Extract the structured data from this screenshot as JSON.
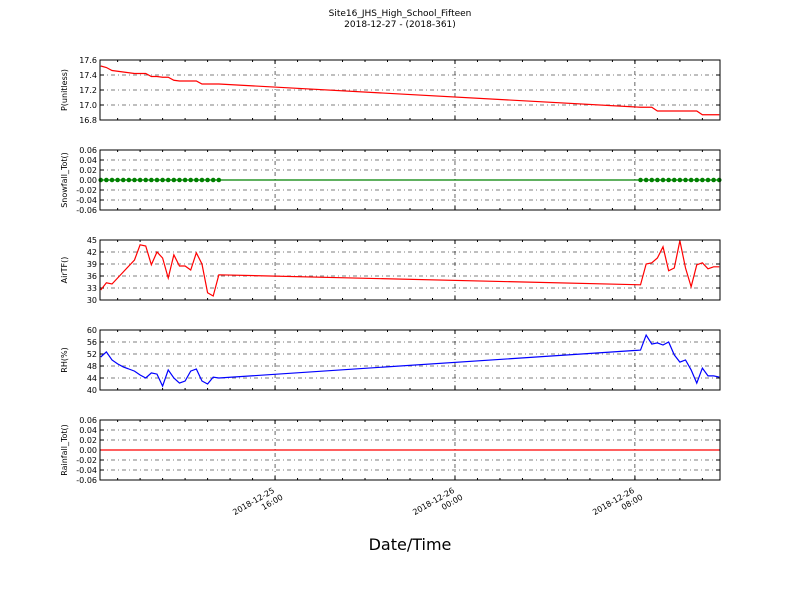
{
  "chart_data": {
    "type": "line",
    "title": "Site16_JHS_High_School_Fifteen",
    "subtitle": "2018-12-27 - (2018-361)",
    "xlabel": "Date/Time",
    "x": [
      "2018-12-25 08:15",
      "2018-12-25 08:30",
      "2018-12-25 08:45",
      "2018-12-25 09:00",
      "2018-12-25 09:15",
      "2018-12-25 09:30",
      "2018-12-25 09:45",
      "2018-12-25 10:00",
      "2018-12-25 10:15",
      "2018-12-25 10:30",
      "2018-12-25 10:45",
      "2018-12-25 11:00",
      "2018-12-25 11:15",
      "2018-12-25 11:30",
      "2018-12-25 11:45",
      "2018-12-25 12:00",
      "2018-12-25 12:15",
      "2018-12-25 12:30",
      "2018-12-25 12:45",
      "2018-12-25 13:00",
      "2018-12-25 13:15",
      "2018-12-25 13:30",
      "2018-12-26 08:15",
      "2018-12-26 08:30",
      "2018-12-26 08:45",
      "2018-12-26 09:00",
      "2018-12-26 09:15",
      "2018-12-26 09:30",
      "2018-12-26 09:45",
      "2018-12-26 10:00",
      "2018-12-26 10:15",
      "2018-12-26 10:30",
      "2018-12-26 10:45",
      "2018-12-26 11:00",
      "2018-12-26 11:15",
      "2018-12-26 11:30",
      "2018-12-26 11:45"
    ],
    "xlim": [
      "2018-12-25 08:13",
      "2018-12-26 11:47"
    ],
    "xticks": [
      "2018-12-25 16:00",
      "2018-12-26 00:00",
      "2018-12-26 08:00"
    ],
    "grid": true,
    "panels": [
      {
        "ylabel": "P(unitless)",
        "ylim": [
          16.8,
          17.6
        ],
        "yticks": [
          16.8,
          {
            "value": 17,
            "label": "17.0"
          },
          17.2,
          17.4,
          17.6
        ],
        "series": [
          {
            "color": "#ff0000",
            "marker": false,
            "values": [
              17.52,
              17.5,
              17.46,
              17.45,
              17.44,
              17.43,
              17.42,
              17.42,
              17.42,
              17.38,
              17.38,
              17.37,
              17.37,
              17.33,
              17.32,
              17.32,
              17.32,
              17.32,
              17.28,
              17.28,
              17.28,
              17.28,
              16.97,
              16.97,
              16.97,
              16.92,
              16.92,
              16.92,
              16.92,
              16.92,
              16.92,
              16.92,
              16.92,
              16.87,
              16.87,
              16.87,
              16.87
            ]
          }
        ]
      },
      {
        "ylabel": "Snowfall_Tot()",
        "ylim": [
          -0.06,
          0.06
        ],
        "yticks": [
          -0.06,
          -0.04,
          -0.02,
          {
            "value": 0,
            "label": "0.00"
          },
          0.02,
          0.04,
          0.06
        ],
        "series": [
          {
            "color": "#008000",
            "marker": true,
            "values": [
              0,
              0,
              0,
              0,
              0,
              0,
              0,
              0,
              0,
              0,
              0,
              0,
              0,
              0,
              0,
              0,
              0,
              0,
              0,
              0,
              0,
              0,
              0,
              0,
              0,
              0,
              0,
              0,
              0,
              0,
              0,
              0,
              0,
              0,
              0,
              0,
              0
            ]
          }
        ]
      },
      {
        "ylabel": "AirTF()",
        "ylim": [
          30,
          45
        ],
        "yticks": [
          30,
          33,
          36,
          39,
          42,
          45
        ],
        "series": [
          {
            "color": "#ff0000",
            "marker": false,
            "values": [
              32.5,
              34.3,
              34,
              35.5,
              37,
              38.5,
              40,
              43.8,
              43.5,
              38.8,
              42,
              40.5,
              35.5,
              41.3,
              38.5,
              38.5,
              37.5,
              41.8,
              39,
              31.8,
              31,
              36.3,
              33.8,
              39,
              39.3,
              40.5,
              43.3,
              37.3,
              38,
              44.8,
              38,
              33.3,
              38.8,
              39.3,
              37.8,
              38.3,
              38.3
            ]
          }
        ]
      },
      {
        "ylabel": "RH(%)",
        "ylim": [
          40,
          60
        ],
        "yticks": [
          40,
          44,
          48,
          52,
          56,
          60
        ],
        "series": [
          {
            "color": "#0000ff",
            "marker": false,
            "values": [
              51,
              52.7,
              50,
              48.7,
              47.7,
              47,
              46.3,
              45,
              44,
              45.7,
              45.3,
              41.3,
              46.7,
              44,
              42.3,
              43,
              46.3,
              47,
              43,
              42,
              44.3,
              44,
              53.3,
              58.3,
              55.3,
              55.7,
              55,
              56,
              51.7,
              49.3,
              50,
              46.7,
              42.3,
              47.3,
              44.7,
              44.7,
              44.3
            ]
          }
        ]
      },
      {
        "ylabel": "Rainfall_Tot()",
        "ylim": [
          -0.06,
          0.06
        ],
        "yticks": [
          -0.06,
          -0.04,
          -0.02,
          {
            "value": 0,
            "label": "0.00"
          },
          0.02,
          0.04,
          0.06
        ],
        "series": [
          {
            "color": "#ff0000",
            "marker": false,
            "values": [
              0,
              0,
              0,
              0,
              0,
              0,
              0,
              0,
              0,
              0,
              0,
              0,
              0,
              0,
              0,
              0,
              0,
              0,
              0,
              0,
              0,
              0,
              0,
              0,
              0,
              0,
              0,
              0,
              0,
              0,
              0,
              0,
              0,
              0,
              0,
              0,
              0
            ]
          }
        ]
      }
    ]
  }
}
